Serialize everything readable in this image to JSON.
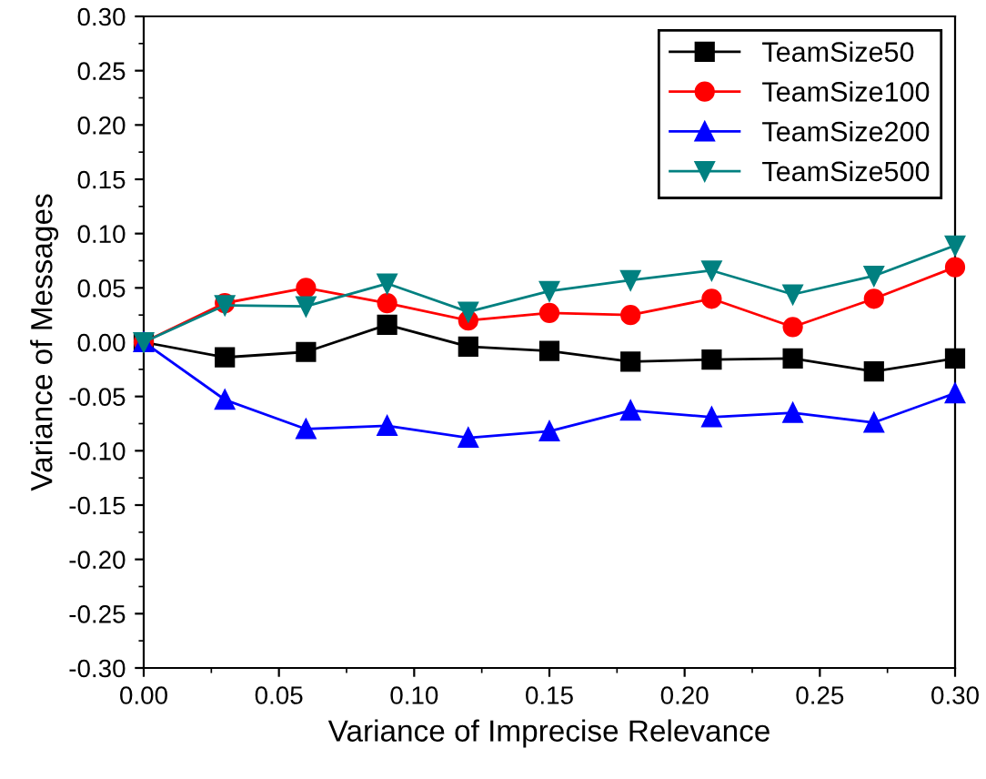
{
  "chart_data": {
    "type": "line",
    "xlabel": "Variance of Imprecise Relevance",
    "ylabel": "Variance of Messages",
    "x": [
      0.0,
      0.03,
      0.06,
      0.09,
      0.12,
      0.15,
      0.18,
      0.21,
      0.24,
      0.27,
      0.3
    ],
    "series": [
      {
        "name": "TeamSize50",
        "color": "#000000",
        "marker": "square",
        "values": [
          0,
          -0.014,
          -0.009,
          0.016,
          -0.004,
          -0.008,
          -0.018,
          -0.016,
          -0.015,
          -0.027,
          -0.015
        ]
      },
      {
        "name": "TeamSize100",
        "color": "#ff0000",
        "marker": "circle",
        "values": [
          0,
          0.036,
          0.05,
          0.036,
          0.02,
          0.027,
          0.025,
          0.04,
          0.014,
          0.04,
          0.069
        ]
      },
      {
        "name": "TeamSize200",
        "color": "#0000ff",
        "marker": "triangle",
        "values": [
          0,
          -0.053,
          -0.08,
          -0.077,
          -0.088,
          -0.082,
          -0.063,
          -0.069,
          -0.065,
          -0.074,
          -0.047
        ]
      },
      {
        "name": "TeamSize500",
        "color": "#008080",
        "marker": "triangle_down",
        "values": [
          0,
          0.034,
          0.033,
          0.054,
          0.028,
          0.047,
          0.057,
          0.066,
          0.044,
          0.061,
          0.089
        ]
      }
    ],
    "xlim": [
      0.0,
      0.3
    ],
    "ylim": [
      -0.3,
      0.3
    ],
    "xticks": [
      {
        "value": 0.0,
        "label": "0.00"
      },
      {
        "value": 0.05,
        "label": "0.05"
      },
      {
        "value": 0.1,
        "label": "0.10"
      },
      {
        "value": 0.15,
        "label": "0.15"
      },
      {
        "value": 0.2,
        "label": "0.20"
      },
      {
        "value": 0.25,
        "label": "0.25"
      },
      {
        "value": 0.3,
        "label": "0.30"
      }
    ],
    "yticks": [
      {
        "value": -0.3,
        "label": "-0.30"
      },
      {
        "value": -0.25,
        "label": "-0.25"
      },
      {
        "value": -0.2,
        "label": "-0.20"
      },
      {
        "value": -0.15,
        "label": "-0.15"
      },
      {
        "value": -0.1,
        "label": "-0.10"
      },
      {
        "value": -0.05,
        "label": "-0.05"
      },
      {
        "value": 0.0,
        "label": "0.00"
      },
      {
        "value": 0.05,
        "label": "0.05"
      },
      {
        "value": 0.1,
        "label": "0.10"
      },
      {
        "value": 0.15,
        "label": "0.15"
      },
      {
        "value": 0.2,
        "label": "0.20"
      },
      {
        "value": 0.25,
        "label": "0.25"
      },
      {
        "value": 0.3,
        "label": "0.30"
      }
    ],
    "legend": "top right",
    "grid": false,
    "line_style": "solid"
  }
}
